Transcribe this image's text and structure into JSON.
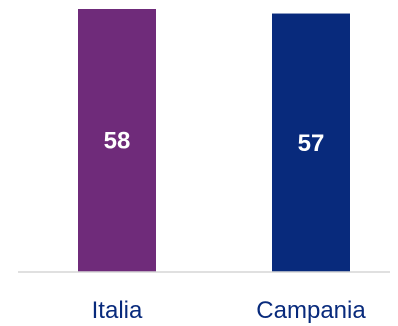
{
  "chart_data": {
    "type": "bar",
    "categories": [
      "Italia",
      "Campania"
    ],
    "values": [
      58,
      57
    ],
    "colors": [
      "#6f2b7a",
      "#082a7c"
    ],
    "label_color": "#082a7c",
    "axis_color": "#d6d6d6",
    "title": "",
    "xlabel": "",
    "ylabel": "",
    "ylim": [
      0,
      58
    ],
    "grid": false,
    "legend": "none"
  }
}
